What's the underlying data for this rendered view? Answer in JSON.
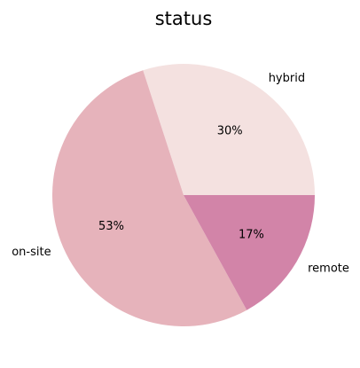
{
  "chart_data": {
    "type": "pie",
    "title": "status",
    "start_angle_deg": 0,
    "direction": "counterclockwise",
    "slices": [
      {
        "label": "hybrid",
        "value": 30,
        "pct_label": "30%",
        "color": "#f4e1e0"
      },
      {
        "label": "on-site",
        "value": 53,
        "pct_label": "53%",
        "color": "#e6b3bb"
      },
      {
        "label": "remote",
        "value": 17,
        "pct_label": "17%",
        "color": "#d284a8"
      }
    ]
  }
}
